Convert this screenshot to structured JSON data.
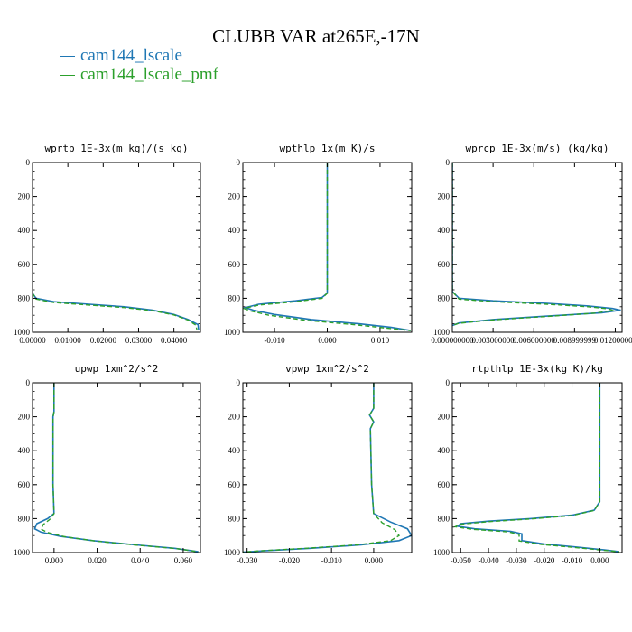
{
  "title": "CLUBB VAR at265E,-17N",
  "legend": [
    {
      "label": "cam144_lscale",
      "color": "#1f77b4"
    },
    {
      "label": "cam144_lscale_pmf",
      "color": "#2ca02c"
    }
  ],
  "chart_data": [
    {
      "type": "line",
      "title": "wprtp  1E-3x(m kg)/(s kg)",
      "xlim": [
        0.0,
        0.0475
      ],
      "ylim": [
        0,
        1000
      ],
      "y_inverted": true,
      "xticks": [
        0.0,
        0.01,
        0.02,
        0.03,
        0.04
      ],
      "xticklabels": [
        "0.00000",
        "0.01000",
        "0.02000",
        "0.03000",
        "0.04000"
      ],
      "yticks": [
        0,
        200,
        400,
        600,
        800,
        1000
      ],
      "yticklabels": [
        "0",
        "200",
        "400",
        "600",
        "800",
        "1000"
      ],
      "series": [
        {
          "color": "#1f77b4",
          "dash": false,
          "x": [
            0,
            0,
            0.001,
            0.006,
            0.016,
            0.026,
            0.034,
            0.04,
            0.044,
            0.0468,
            0.047
          ],
          "y": [
            0,
            770,
            800,
            820,
            835,
            850,
            870,
            895,
            925,
            955,
            985
          ]
        },
        {
          "color": "#2ca02c",
          "dash": true,
          "x": [
            0,
            0,
            0.001,
            0.006,
            0.016,
            0.026,
            0.034,
            0.04,
            0.044,
            0.0462,
            0.0465
          ],
          "y": [
            0,
            770,
            805,
            825,
            840,
            855,
            873,
            898,
            928,
            958,
            985
          ]
        }
      ]
    },
    {
      "type": "line",
      "title": "wpthlp  1x(m K)/s",
      "xlim": [
        -0.016,
        0.016
      ],
      "ylim": [
        0,
        1000
      ],
      "y_inverted": true,
      "xticks": [
        -0.01,
        0.0,
        0.01
      ],
      "xticklabels": [
        "-0.010",
        "0.000",
        "0.010"
      ],
      "yticks": [
        0,
        200,
        400,
        600,
        800,
        1000
      ],
      "yticklabels": [
        "0",
        "200",
        "400",
        "600",
        "800",
        "1000"
      ],
      "series": [
        {
          "color": "#1f77b4",
          "dash": false,
          "x": [
            0,
            0,
            0,
            -0.001,
            -0.006,
            -0.013,
            -0.0155,
            -0.014,
            -0.01,
            -0.003,
            0.006,
            0.012,
            0.0158
          ],
          "y": [
            0,
            700,
            770,
            795,
            815,
            835,
            855,
            870,
            895,
            925,
            950,
            970,
            990
          ]
        },
        {
          "color": "#2ca02c",
          "dash": true,
          "x": [
            0,
            0,
            0,
            -0.001,
            -0.006,
            -0.013,
            -0.0158,
            -0.0145,
            -0.011,
            -0.004,
            0.005,
            0.011,
            0.0158
          ],
          "y": [
            0,
            700,
            770,
            800,
            820,
            840,
            860,
            875,
            900,
            930,
            955,
            975,
            990
          ]
        }
      ]
    },
    {
      "type": "line",
      "title": "wprcp  1E-3x(m/s) (kg/kg)",
      "xlim": [
        0.0,
        0.0125
      ],
      "ylim": [
        0,
        1000
      ],
      "y_inverted": true,
      "xticks": [
        0.0,
        0.003,
        0.006,
        0.009,
        0.012
      ],
      "xticklabels": [
        "0.000000000",
        "0.003000000",
        "0.006000000",
        "0.008999999",
        "0.012000000"
      ],
      "yticks": [
        0,
        200,
        400,
        600,
        800,
        1000
      ],
      "yticklabels": [
        "0",
        "200",
        "400",
        "600",
        "800",
        "1000"
      ],
      "series": [
        {
          "color": "#1f77b4",
          "dash": false,
          "x": [
            0,
            0,
            0.0005,
            0.003,
            0.007,
            0.01,
            0.0118,
            0.0124,
            0.011,
            0.007,
            0.003,
            0.0005,
            0
          ],
          "y": [
            0,
            760,
            800,
            815,
            830,
            845,
            860,
            870,
            885,
            905,
            925,
            945,
            960
          ]
        },
        {
          "color": "#2ca02c",
          "dash": true,
          "x": [
            0,
            0,
            0.0005,
            0.003,
            0.007,
            0.01,
            0.0115,
            0.0118,
            0.0105,
            0.007,
            0.003,
            0.0005,
            0
          ],
          "y": [
            0,
            760,
            805,
            820,
            835,
            850,
            862,
            872,
            887,
            907,
            927,
            947,
            960
          ]
        }
      ]
    },
    {
      "type": "line",
      "title": "upwp  1xm^2/s^2",
      "xlim": [
        -0.01,
        0.068
      ],
      "ylim": [
        0,
        1000
      ],
      "y_inverted": true,
      "xticks": [
        0.0,
        0.02,
        0.04,
        0.06
      ],
      "xticklabels": [
        "0.000",
        "0.020",
        "0.040",
        "0.060"
      ],
      "yticks": [
        0,
        200,
        400,
        600,
        800,
        1000
      ],
      "yticklabels": [
        "0",
        "200",
        "400",
        "600",
        "800",
        "1000"
      ],
      "series": [
        {
          "color": "#1f77b4",
          "dash": false,
          "x": [
            0,
            0,
            0,
            -0.0005,
            -0.0005,
            0,
            -0.003,
            -0.008,
            -0.009,
            -0.006,
            0.003,
            0.018,
            0.038,
            0.056,
            0.067
          ],
          "y": [
            0,
            150,
            170,
            200,
            600,
            770,
            800,
            830,
            860,
            880,
            905,
            930,
            955,
            975,
            995
          ]
        },
        {
          "color": "#2ca02c",
          "dash": true,
          "x": [
            0,
            0,
            0,
            -0.0005,
            -0.0005,
            0,
            -0.002,
            -0.005,
            -0.006,
            -0.003,
            0.005,
            0.019,
            0.039,
            0.057,
            0.067
          ],
          "y": [
            0,
            150,
            170,
            200,
            600,
            770,
            805,
            835,
            862,
            882,
            907,
            932,
            957,
            977,
            995
          ]
        }
      ]
    },
    {
      "type": "line",
      "title": "vpwp  1xm^2/s^2",
      "xlim": [
        -0.031,
        0.009
      ],
      "ylim": [
        0,
        1000
      ],
      "y_inverted": true,
      "xticks": [
        -0.03,
        -0.02,
        -0.01,
        0.0
      ],
      "xticklabels": [
        "-0.030",
        "-0.020",
        "-0.010",
        "0.000"
      ],
      "yticks": [
        0,
        200,
        400,
        600,
        800,
        1000
      ],
      "yticklabels": [
        "0",
        "200",
        "400",
        "600",
        "800",
        "1000"
      ],
      "series": [
        {
          "color": "#1f77b4",
          "dash": false,
          "x": [
            0,
            0,
            -0.001,
            0,
            -0.0008,
            -0.0005,
            0,
            0.004,
            0.008,
            0.009,
            0.006,
            -0.003,
            -0.015,
            -0.026,
            -0.031
          ],
          "y": [
            0,
            150,
            190,
            230,
            270,
            600,
            770,
            820,
            860,
            900,
            930,
            955,
            975,
            990,
            998
          ]
        },
        {
          "color": "#2ca02c",
          "dash": true,
          "x": [
            0,
            0,
            -0.001,
            0,
            -0.0008,
            -0.0005,
            0,
            0.002,
            0.005,
            0.006,
            0.004,
            -0.004,
            -0.016,
            -0.027,
            -0.031
          ],
          "y": [
            0,
            150,
            190,
            230,
            270,
            600,
            770,
            825,
            865,
            900,
            930,
            955,
            975,
            990,
            998
          ]
        }
      ]
    },
    {
      "type": "line",
      "title": "rtpthlp  1E-3x(kg K)/kg",
      "xlim": [
        -0.053,
        0.008
      ],
      "ylim": [
        0,
        1000
      ],
      "y_inverted": true,
      "xticks": [
        -0.05,
        -0.04,
        -0.03,
        -0.02,
        -0.01,
        0.0
      ],
      "xticklabels": [
        "-0.050",
        "-0.040",
        "-0.030",
        "-0.020",
        "-0.010",
        "0.000"
      ],
      "yticks": [
        0,
        200,
        400,
        600,
        800,
        1000
      ],
      "yticklabels": [
        "0",
        "200",
        "400",
        "600",
        "800",
        "1000"
      ],
      "series": [
        {
          "color": "#1f77b4",
          "dash": false,
          "x": [
            0,
            0,
            -0.002,
            -0.01,
            -0.025,
            -0.04,
            -0.05,
            -0.051,
            -0.045,
            -0.032,
            -0.028,
            -0.028,
            -0.02,
            -0.01,
            0.002,
            0.007
          ],
          "y": [
            0,
            700,
            750,
            780,
            800,
            815,
            830,
            845,
            860,
            875,
            890,
            930,
            950,
            965,
            985,
            995
          ]
        },
        {
          "color": "#2ca02c",
          "dash": true,
          "x": [
            0,
            0,
            -0.002,
            -0.01,
            -0.025,
            -0.04,
            -0.05,
            -0.052,
            -0.046,
            -0.033,
            -0.029,
            -0.029,
            -0.021,
            -0.011,
            0.001,
            0.007
          ],
          "y": [
            0,
            700,
            752,
            782,
            802,
            818,
            833,
            848,
            863,
            878,
            893,
            932,
            952,
            967,
            986,
            995
          ]
        }
      ]
    }
  ]
}
